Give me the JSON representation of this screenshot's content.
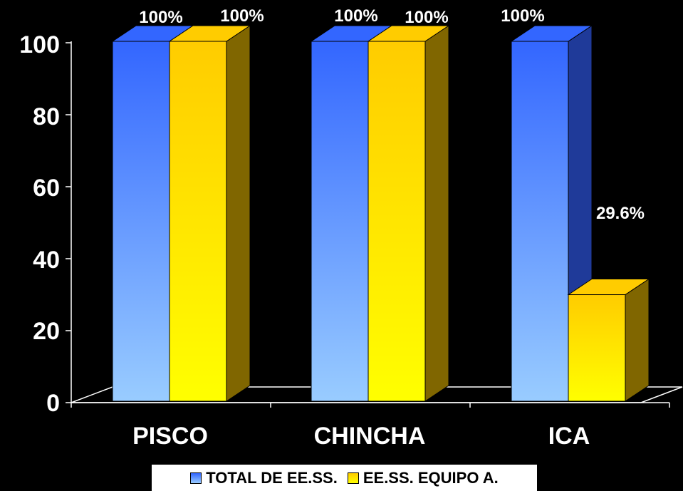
{
  "chart_data": {
    "type": "bar",
    "categories": [
      "PISCO",
      "CHINCHA",
      "ICA"
    ],
    "series": [
      {
        "name": "TOTAL DE EE.SS.",
        "values": [
          100,
          100,
          100
        ],
        "labels": [
          "100%",
          "100%",
          "100%"
        ],
        "color_top": "#3366ff",
        "color_bottom": "#99ccff",
        "color_side": "#1f3a99"
      },
      {
        "name": "EE.SS. EQUIPO A.",
        "values": [
          100,
          100,
          29.6
        ],
        "labels": [
          "100%",
          "100%",
          "29.6%"
        ],
        "color_top": "#ffcc00",
        "color_bottom": "#ffff00",
        "color_side": "#806600"
      }
    ],
    "y_ticks": [
      "0",
      "20",
      "40",
      "60",
      "80",
      "100"
    ],
    "ylim": [
      0,
      100
    ],
    "legend_position": "bottom",
    "three_d": true
  }
}
